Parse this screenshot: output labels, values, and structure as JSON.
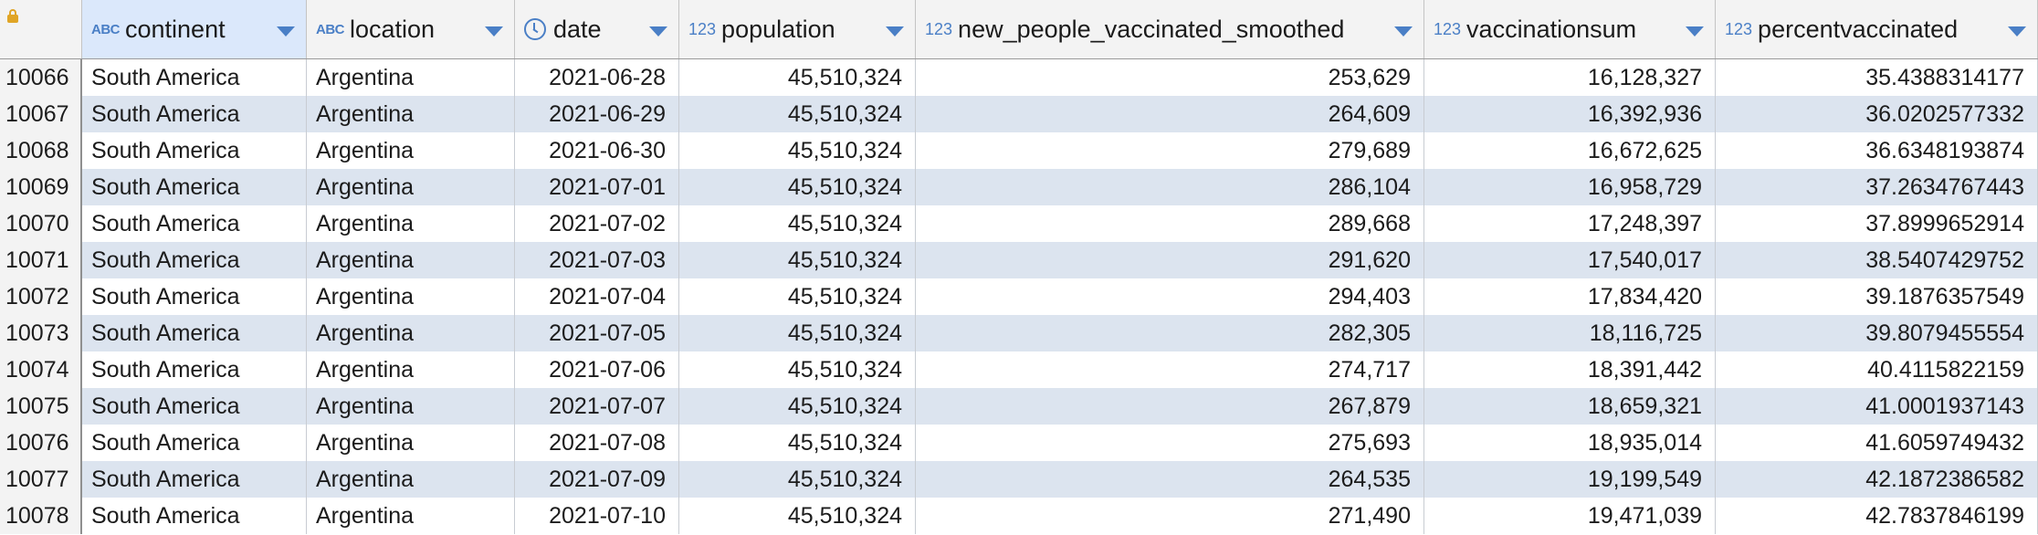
{
  "columns": [
    {
      "name": "continent",
      "type_label": "ABC",
      "type_icon": "text-type-icon"
    },
    {
      "name": "location",
      "type_label": "ABC",
      "type_icon": "text-type-icon"
    },
    {
      "name": "date",
      "type_label": "",
      "type_icon": "clock-icon"
    },
    {
      "name": "population",
      "type_label": "123",
      "type_icon": "numeric-type-icon"
    },
    {
      "name": "new_people_vaccinated_smoothed",
      "type_label": "123",
      "type_icon": "numeric-type-icon"
    },
    {
      "name": "vaccinationsum",
      "type_label": "123",
      "type_icon": "numeric-type-icon"
    },
    {
      "name": "percentvaccinated",
      "type_label": "123",
      "type_icon": "numeric-type-icon"
    }
  ],
  "rows": [
    [
      "10066",
      "South America",
      "Argentina",
      "2021-06-28",
      "45,510,324",
      "253,629",
      "16,128,327",
      "35.4388314177"
    ],
    [
      "10067",
      "South America",
      "Argentina",
      "2021-06-29",
      "45,510,324",
      "264,609",
      "16,392,936",
      "36.0202577332"
    ],
    [
      "10068",
      "South America",
      "Argentina",
      "2021-06-30",
      "45,510,324",
      "279,689",
      "16,672,625",
      "36.6348193874"
    ],
    [
      "10069",
      "South America",
      "Argentina",
      "2021-07-01",
      "45,510,324",
      "286,104",
      "16,958,729",
      "37.2634767443"
    ],
    [
      "10070",
      "South America",
      "Argentina",
      "2021-07-02",
      "45,510,324",
      "289,668",
      "17,248,397",
      "37.8999652914"
    ],
    [
      "10071",
      "South America",
      "Argentina",
      "2021-07-03",
      "45,510,324",
      "291,620",
      "17,540,017",
      "38.5407429752"
    ],
    [
      "10072",
      "South America",
      "Argentina",
      "2021-07-04",
      "45,510,324",
      "294,403",
      "17,834,420",
      "39.1876357549"
    ],
    [
      "10073",
      "South America",
      "Argentina",
      "2021-07-05",
      "45,510,324",
      "282,305",
      "18,116,725",
      "39.8079455554"
    ],
    [
      "10074",
      "South America",
      "Argentina",
      "2021-07-06",
      "45,510,324",
      "274,717",
      "18,391,442",
      "40.4115822159"
    ],
    [
      "10075",
      "South America",
      "Argentina",
      "2021-07-07",
      "45,510,324",
      "267,879",
      "18,659,321",
      "41.0001937143"
    ],
    [
      "10076",
      "South America",
      "Argentina",
      "2021-07-08",
      "45,510,324",
      "275,693",
      "18,935,014",
      "41.6059749432"
    ],
    [
      "10077",
      "South America",
      "Argentina",
      "2021-07-09",
      "45,510,324",
      "264,535",
      "19,199,549",
      "42.1872386582"
    ],
    [
      "10078",
      "South America",
      "Argentina",
      "2021-07-10",
      "45,510,324",
      "271,490",
      "19,471,039",
      "42.7837846199"
    ]
  ],
  "colors": {
    "header_bg": "#f3f3f3",
    "selected_header_bg": "#dbe8fb",
    "alt_row_bg": "#dce4ef",
    "accent": "#4a7fc6",
    "lock": "#e0a526"
  }
}
